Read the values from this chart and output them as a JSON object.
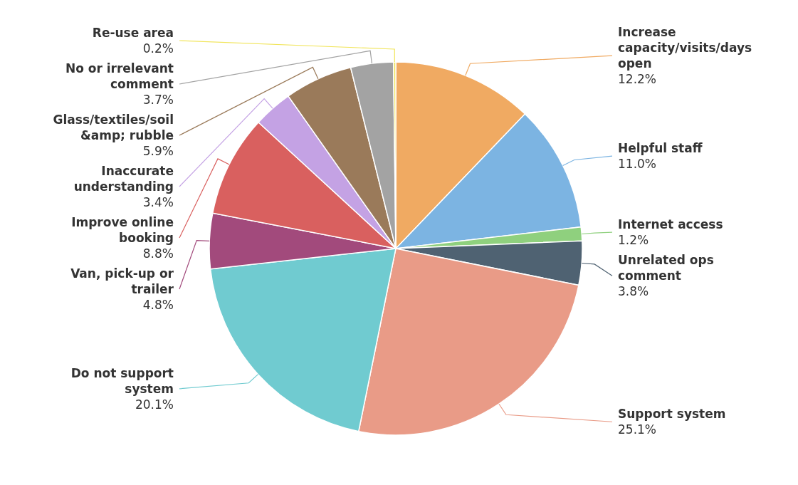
{
  "chart_data": {
    "type": "pie",
    "categories": [
      "Increase capacity/visits/days open",
      "Helpful staff",
      "Internet access",
      "Unrelated ops comment",
      "Support system",
      "Do not support system",
      "Van, pick-up or trailer",
      "Improve online booking",
      "Inaccurate understanding",
      "Glass/textiles/soil &amp; rubble",
      "No or irrelevant comment",
      "Re-use area"
    ],
    "values": [
      12.2,
      11.0,
      1.2,
      3.8,
      25.1,
      20.1,
      4.8,
      8.8,
      3.4,
      5.9,
      3.7,
      0.2
    ],
    "value_labels": [
      "12.2%",
      "11.0%",
      "1.2%",
      "3.8%",
      "25.1%",
      "20.1%",
      "4.8%",
      "8.8%",
      "3.4%",
      "5.9%",
      "3.7%",
      "0.2%"
    ],
    "colors": [
      "#f0aa62",
      "#7cb4e2",
      "#8fd07e",
      "#4f6272",
      "#e99b87",
      "#70cbd0",
      "#a24a7c",
      "#d9605f",
      "#c4a2e4",
      "#9a7a5a",
      "#a3a3a3",
      "#f1e55c"
    ]
  }
}
